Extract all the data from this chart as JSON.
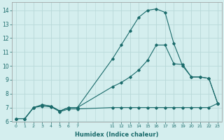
{
  "xlabel": "Humidex (Indice chaleur)",
  "bg_color": "#d4eeee",
  "grid_color": "#b8d8d8",
  "line_color": "#1a6b6b",
  "xlim": [
    -0.5,
    23.5
  ],
  "ylim": [
    6.0,
    14.6
  ],
  "xtick_positions": [
    0,
    1,
    2,
    3,
    4,
    5,
    6,
    7,
    11,
    12,
    13,
    14,
    15,
    16,
    17,
    18,
    19,
    20,
    21,
    22,
    23
  ],
  "xtick_labels": [
    "0",
    "1",
    "2",
    "3",
    "4",
    "5",
    "6",
    "7",
    "11",
    "12",
    "13",
    "14",
    "15",
    "16",
    "17",
    "18",
    "19",
    "20",
    "21",
    "22",
    "23"
  ],
  "yticks": [
    6,
    7,
    8,
    9,
    10,
    11,
    12,
    13,
    14
  ],
  "series1_x": [
    0,
    1,
    2,
    3,
    4,
    5,
    6,
    7,
    11,
    12,
    13,
    14,
    15,
    16,
    17,
    18,
    19,
    20,
    21,
    22,
    23
  ],
  "series1_y": [
    6.2,
    6.2,
    7.0,
    7.1,
    7.05,
    6.7,
    6.9,
    6.9,
    7.0,
    7.0,
    7.0,
    7.0,
    7.0,
    7.0,
    7.0,
    7.0,
    7.0,
    7.0,
    7.0,
    7.0,
    7.3
  ],
  "series2_x": [
    0,
    1,
    2,
    3,
    4,
    5,
    6,
    7,
    11,
    12,
    13,
    14,
    15,
    16,
    17,
    18,
    19,
    20,
    21,
    22,
    23
  ],
  "series2_y": [
    6.2,
    6.2,
    7.0,
    7.2,
    7.1,
    6.75,
    7.0,
    7.0,
    8.5,
    8.8,
    9.2,
    9.7,
    10.4,
    11.5,
    11.5,
    10.15,
    10.1,
    9.2,
    9.2,
    9.1,
    7.3
  ],
  "series3_x": [
    0,
    1,
    2,
    3,
    4,
    5,
    6,
    7,
    11,
    12,
    13,
    14,
    15,
    16,
    17,
    18,
    19,
    20,
    21,
    22,
    23
  ],
  "series3_y": [
    6.2,
    6.2,
    7.0,
    7.2,
    7.1,
    6.75,
    7.0,
    7.0,
    10.5,
    11.5,
    12.5,
    13.5,
    14.0,
    14.1,
    13.85,
    11.6,
    10.0,
    9.2,
    9.2,
    9.1,
    7.3
  ]
}
